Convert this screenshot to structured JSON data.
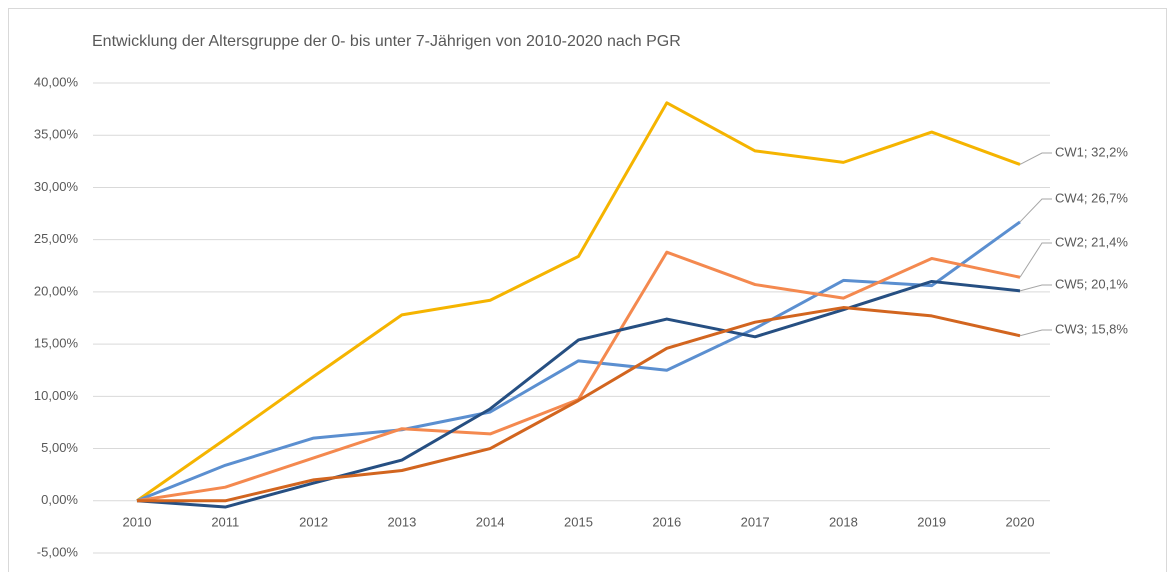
{
  "chart_data": {
    "type": "line",
    "title": "Entwicklung  der Altersgruppe der 0- bis unter 7-Jährigen von 2010-2020 nach PGR",
    "categories": [
      "2010",
      "2011",
      "2012",
      "2013",
      "2014",
      "2015",
      "2016",
      "2017",
      "2018",
      "2019",
      "2020"
    ],
    "ylim": [
      -5,
      40
    ],
    "yticks": [
      {
        "value": -5,
        "label": "-5,00%"
      },
      {
        "value": 0,
        "label": "0,00%"
      },
      {
        "value": 5,
        "label": "5,00%"
      },
      {
        "value": 10,
        "label": "10,00%"
      },
      {
        "value": 15,
        "label": "15,00%"
      },
      {
        "value": 20,
        "label": "20,00%"
      },
      {
        "value": 25,
        "label": "25,00%"
      },
      {
        "value": 30,
        "label": "30,00%"
      },
      {
        "value": 35,
        "label": "35,00%"
      },
      {
        "value": 40,
        "label": "40,00%"
      }
    ],
    "grid": true,
    "series": [
      {
        "name": "CW1",
        "color": "#f5b400",
        "values": [
          0,
          5.9,
          11.9,
          17.8,
          19.2,
          23.4,
          38.1,
          33.5,
          32.4,
          35.3,
          32.2
        ],
        "value_labels": [
          null,
          null,
          null,
          null,
          null,
          null,
          null,
          null,
          null,
          null,
          "CW1; 32,2%"
        ]
      },
      {
        "name": "CW4",
        "color": "#5b8fd0",
        "values": [
          0,
          3.4,
          6.0,
          6.8,
          8.5,
          13.4,
          12.5,
          16.5,
          21.1,
          20.6,
          26.7
        ],
        "value_labels": [
          null,
          null,
          null,
          null,
          null,
          null,
          null,
          null,
          null,
          null,
          "CW4; 26,7%"
        ]
      },
      {
        "name": "CW2",
        "color": "#f4894f",
        "values": [
          0,
          1.3,
          4.1,
          6.9,
          6.4,
          9.7,
          23.8,
          20.7,
          19.4,
          23.2,
          21.4
        ],
        "value_labels": [
          null,
          null,
          null,
          null,
          null,
          null,
          null,
          null,
          null,
          null,
          "CW2; 21,4%"
        ]
      },
      {
        "name": "CW5",
        "color": "#264f82",
        "values": [
          0,
          -0.6,
          1.7,
          3.9,
          8.8,
          15.4,
          17.4,
          15.7,
          18.3,
          21.0,
          20.1
        ],
        "value_labels": [
          null,
          null,
          null,
          null,
          null,
          null,
          null,
          null,
          null,
          null,
          "CW5; 20,1%"
        ]
      },
      {
        "name": "CW3",
        "color": "#d2651f",
        "values": [
          0,
          0.0,
          2.0,
          2.9,
          5.0,
          9.6,
          14.6,
          17.1,
          18.5,
          17.7,
          15.8
        ],
        "value_labels": [
          null,
          null,
          null,
          null,
          null,
          null,
          null,
          null,
          null,
          null,
          "CW3; 15,8%"
        ]
      }
    ]
  }
}
